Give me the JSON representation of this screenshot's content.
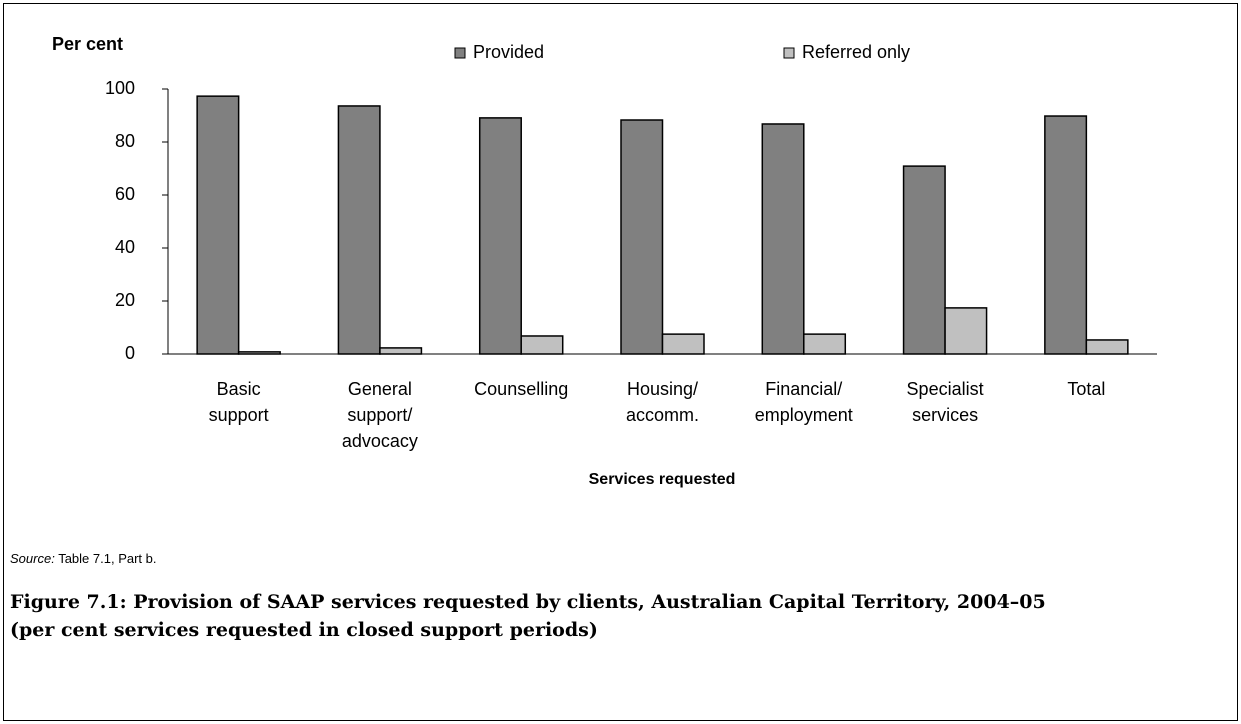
{
  "chart_data": {
    "type": "bar",
    "y_label": "Per cent",
    "x_label": "Services requested",
    "categories": [
      [
        "Basic",
        "support"
      ],
      [
        "General",
        "support/",
        "advocacy"
      ],
      [
        "Counselling"
      ],
      [
        "Housing/",
        "accomm."
      ],
      [
        "Financial/",
        "employment"
      ],
      [
        "Specialist",
        "services"
      ],
      [
        "Total"
      ]
    ],
    "series": [
      {
        "name": "Provided",
        "color": "#808080",
        "values": [
          97.3,
          93.6,
          89.1,
          88.3,
          86.8,
          70.9,
          89.8
        ]
      },
      {
        "name": "Referred only",
        "color": "#c0c0c0",
        "values": [
          0.8,
          2.3,
          6.8,
          7.5,
          7.5,
          17.4,
          5.3
        ]
      }
    ],
    "ylim": [
      0,
      100
    ],
    "yticks": [
      0,
      20,
      40,
      60,
      80,
      100
    ],
    "grid": false,
    "legend": "top"
  },
  "source_label": "Source:",
  "source_text": "Table 7.1, Part b.",
  "caption": [
    "Figure 7.1: Provision of SAAP services requested by clients, Australian Capital Territory, 2004–05",
    "(per cent services requested in closed support periods)"
  ]
}
